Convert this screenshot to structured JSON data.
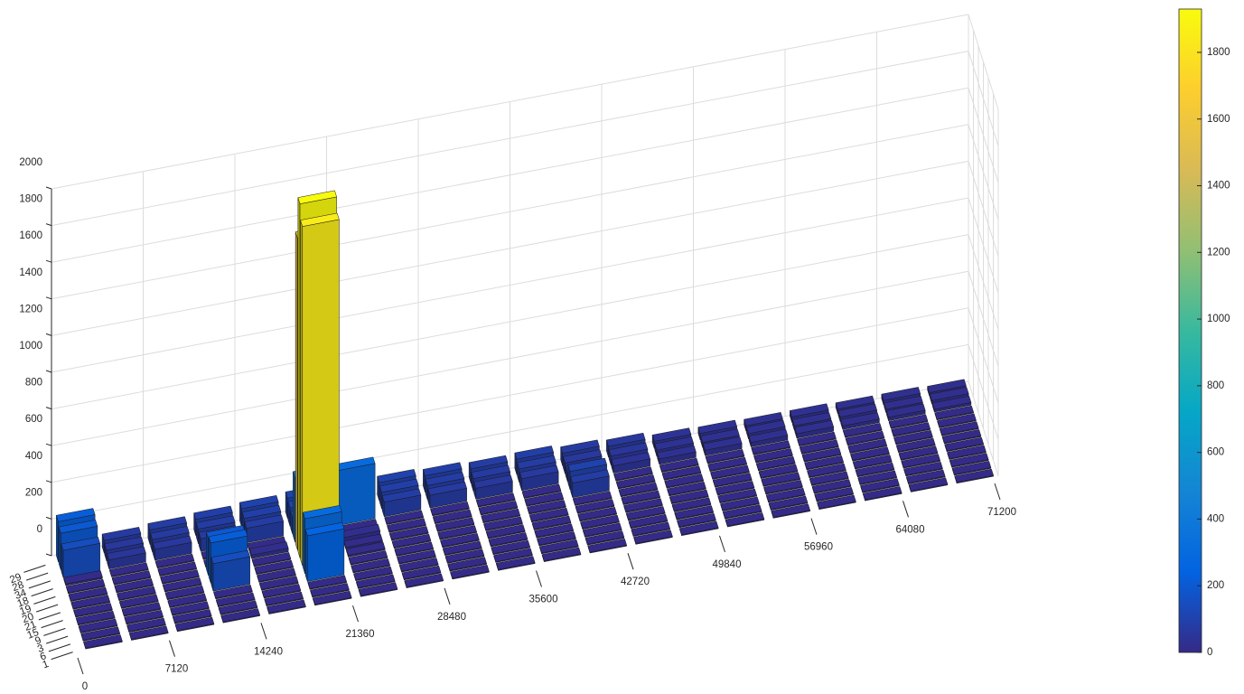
{
  "chart_data": {
    "type": "bar3",
    "xlim": [
      0,
      71200
    ],
    "xticks": [
      0,
      7120,
      14240,
      21360,
      28480,
      35600,
      42720,
      49840,
      56960,
      64080,
      71200
    ],
    "x": [
      0,
      3560,
      7120,
      10680,
      14240,
      17800,
      21360,
      24920,
      28480,
      32040,
      35600,
      39160,
      42720,
      46280,
      49840,
      53400,
      56960,
      60520,
      64080,
      67640
    ],
    "categories": [
      "29",
      "28",
      "34",
      "18",
      "19",
      "20",
      "21",
      "15",
      "9",
      "3",
      "6",
      "1"
    ],
    "zlim": [
      0,
      2000
    ],
    "zticks": [
      0,
      200,
      400,
      600,
      800,
      1000,
      1200,
      1400,
      1600,
      1800,
      2000
    ],
    "values": [
      [
        220,
        70,
        80,
        90,
        100,
        110,
        120,
        100,
        90,
        80,
        85,
        70,
        60,
        40,
        35,
        30,
        30,
        25,
        25,
        20
      ],
      [
        200,
        60,
        70,
        80,
        90,
        100,
        250,
        90,
        80,
        70,
        75,
        60,
        50,
        35,
        30,
        30,
        25,
        25,
        20,
        20
      ],
      [
        150,
        50,
        60,
        70,
        80,
        90,
        300,
        80,
        70,
        60,
        65,
        50,
        40,
        30,
        30,
        25,
        25,
        20,
        20,
        15
      ],
      [
        10,
        5,
        5,
        5,
        5,
        350,
        5,
        5,
        5,
        5,
        5,
        100,
        5,
        5,
        5,
        5,
        5,
        5,
        5,
        5
      ],
      [
        5,
        5,
        5,
        5,
        20,
        1700,
        20,
        5,
        5,
        5,
        5,
        80,
        5,
        5,
        5,
        5,
        5,
        5,
        5,
        5
      ],
      [
        5,
        5,
        5,
        200,
        5,
        1930,
        10,
        5,
        5,
        5,
        5,
        5,
        5,
        5,
        5,
        5,
        5,
        5,
        5,
        5
      ],
      [
        5,
        5,
        5,
        220,
        5,
        1850,
        10,
        5,
        5,
        5,
        5,
        5,
        5,
        5,
        5,
        5,
        5,
        5,
        5,
        5
      ],
      [
        5,
        5,
        5,
        150,
        5,
        300,
        5,
        5,
        5,
        5,
        5,
        5,
        5,
        5,
        5,
        5,
        5,
        5,
        5,
        5
      ],
      [
        5,
        5,
        5,
        5,
        5,
        250,
        5,
        5,
        5,
        5,
        5,
        5,
        5,
        5,
        5,
        5,
        5,
        5,
        5,
        5
      ],
      [
        5,
        5,
        5,
        5,
        5,
        5,
        5,
        5,
        5,
        5,
        5,
        5,
        5,
        5,
        5,
        5,
        5,
        5,
        5,
        5
      ],
      [
        5,
        5,
        5,
        5,
        5,
        5,
        5,
        5,
        5,
        5,
        5,
        5,
        5,
        5,
        5,
        5,
        5,
        5,
        5,
        5
      ],
      [
        5,
        5,
        5,
        5,
        5,
        5,
        5,
        5,
        5,
        5,
        5,
        5,
        5,
        5,
        5,
        5,
        5,
        5,
        5,
        5
      ]
    ],
    "colormap": "parula",
    "clim": [
      0,
      1930
    ],
    "cticks": [
      0,
      200,
      400,
      600,
      800,
      1000,
      1200,
      1400,
      1600,
      1800
    ],
    "grid": true
  }
}
